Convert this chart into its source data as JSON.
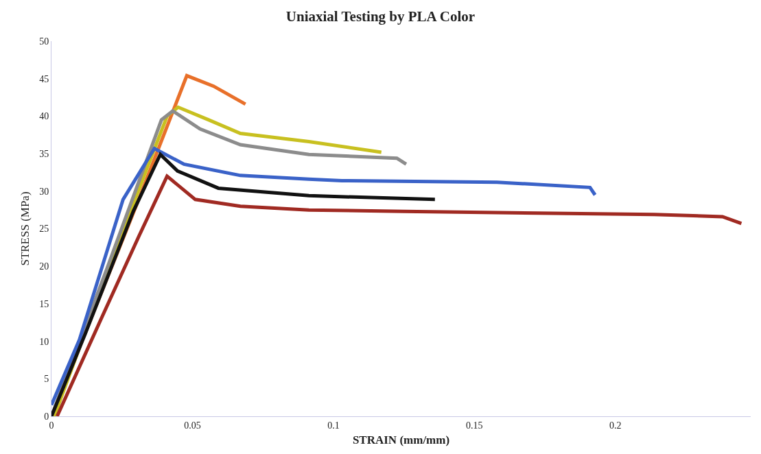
{
  "chart_data": {
    "type": "line",
    "title": "Uniaxial Testing by PLA Color",
    "xlabel": "STRAIN (mm/mm)",
    "ylabel": "STRESS (MPa)",
    "xlim": [
      0,
      0.248
    ],
    "xticks": [
      0,
      0.05,
      0.1,
      0.15,
      0.2
    ],
    "ylim": [
      0,
      50
    ],
    "yticks": [
      0,
      5,
      10,
      15,
      20,
      25,
      30,
      35,
      40,
      45,
      50
    ],
    "marker": "none",
    "line_style": "solid",
    "series": [
      {
        "color": "#e8702a",
        "x": [
          0.001,
          0.011,
          0.03,
          0.048,
          0.0575,
          0.0688
        ],
        "values": [
          0.3,
          10.2,
          28.0,
          45.4,
          44.0,
          41.6
        ]
      },
      {
        "color": "#c8c020",
        "x": [
          0.001,
          0.02,
          0.041,
          0.0449,
          0.0558,
          0.067,
          0.0913,
          0.117
        ],
        "values": [
          0,
          19.5,
          40.0,
          41.2,
          39.5,
          37.7,
          36.6,
          35.2
        ]
      },
      {
        "color": "#8c8c8c",
        "x": [
          0,
          0.02,
          0.039,
          0.043,
          0.0527,
          0.067,
          0.0913,
          0.1225,
          0.1258
        ],
        "values": [
          0,
          20.0,
          39.5,
          40.7,
          38.3,
          36.2,
          34.9,
          34.4,
          33.6
        ]
      },
      {
        "color": "#3a62c8",
        "x": [
          0,
          0.0099,
          0.0254,
          0.0365,
          0.047,
          0.067,
          0.0913,
          0.103,
          0.158,
          0.191,
          0.1928
        ],
        "values": [
          1.5,
          10.2,
          28.9,
          35.7,
          33.6,
          32.1,
          31.6,
          31.4,
          31.2,
          30.5,
          29.5
        ]
      },
      {
        "color": "#111111",
        "x": [
          0,
          0.012,
          0.029,
          0.0386,
          0.0447,
          0.0592,
          0.0913,
          0.136
        ],
        "values": [
          0,
          11.0,
          27.3,
          34.9,
          32.7,
          30.4,
          29.4,
          28.9
        ]
      },
      {
        "color": "#a02a22",
        "x": [
          0.002,
          0.018,
          0.031,
          0.041,
          0.051,
          0.067,
          0.0913,
          0.125,
          0.2138,
          0.238,
          0.2447
        ],
        "values": [
          0,
          13.3,
          24.0,
          32.0,
          28.9,
          28.0,
          27.5,
          27.3,
          26.9,
          26.6,
          25.7
        ]
      }
    ]
  }
}
